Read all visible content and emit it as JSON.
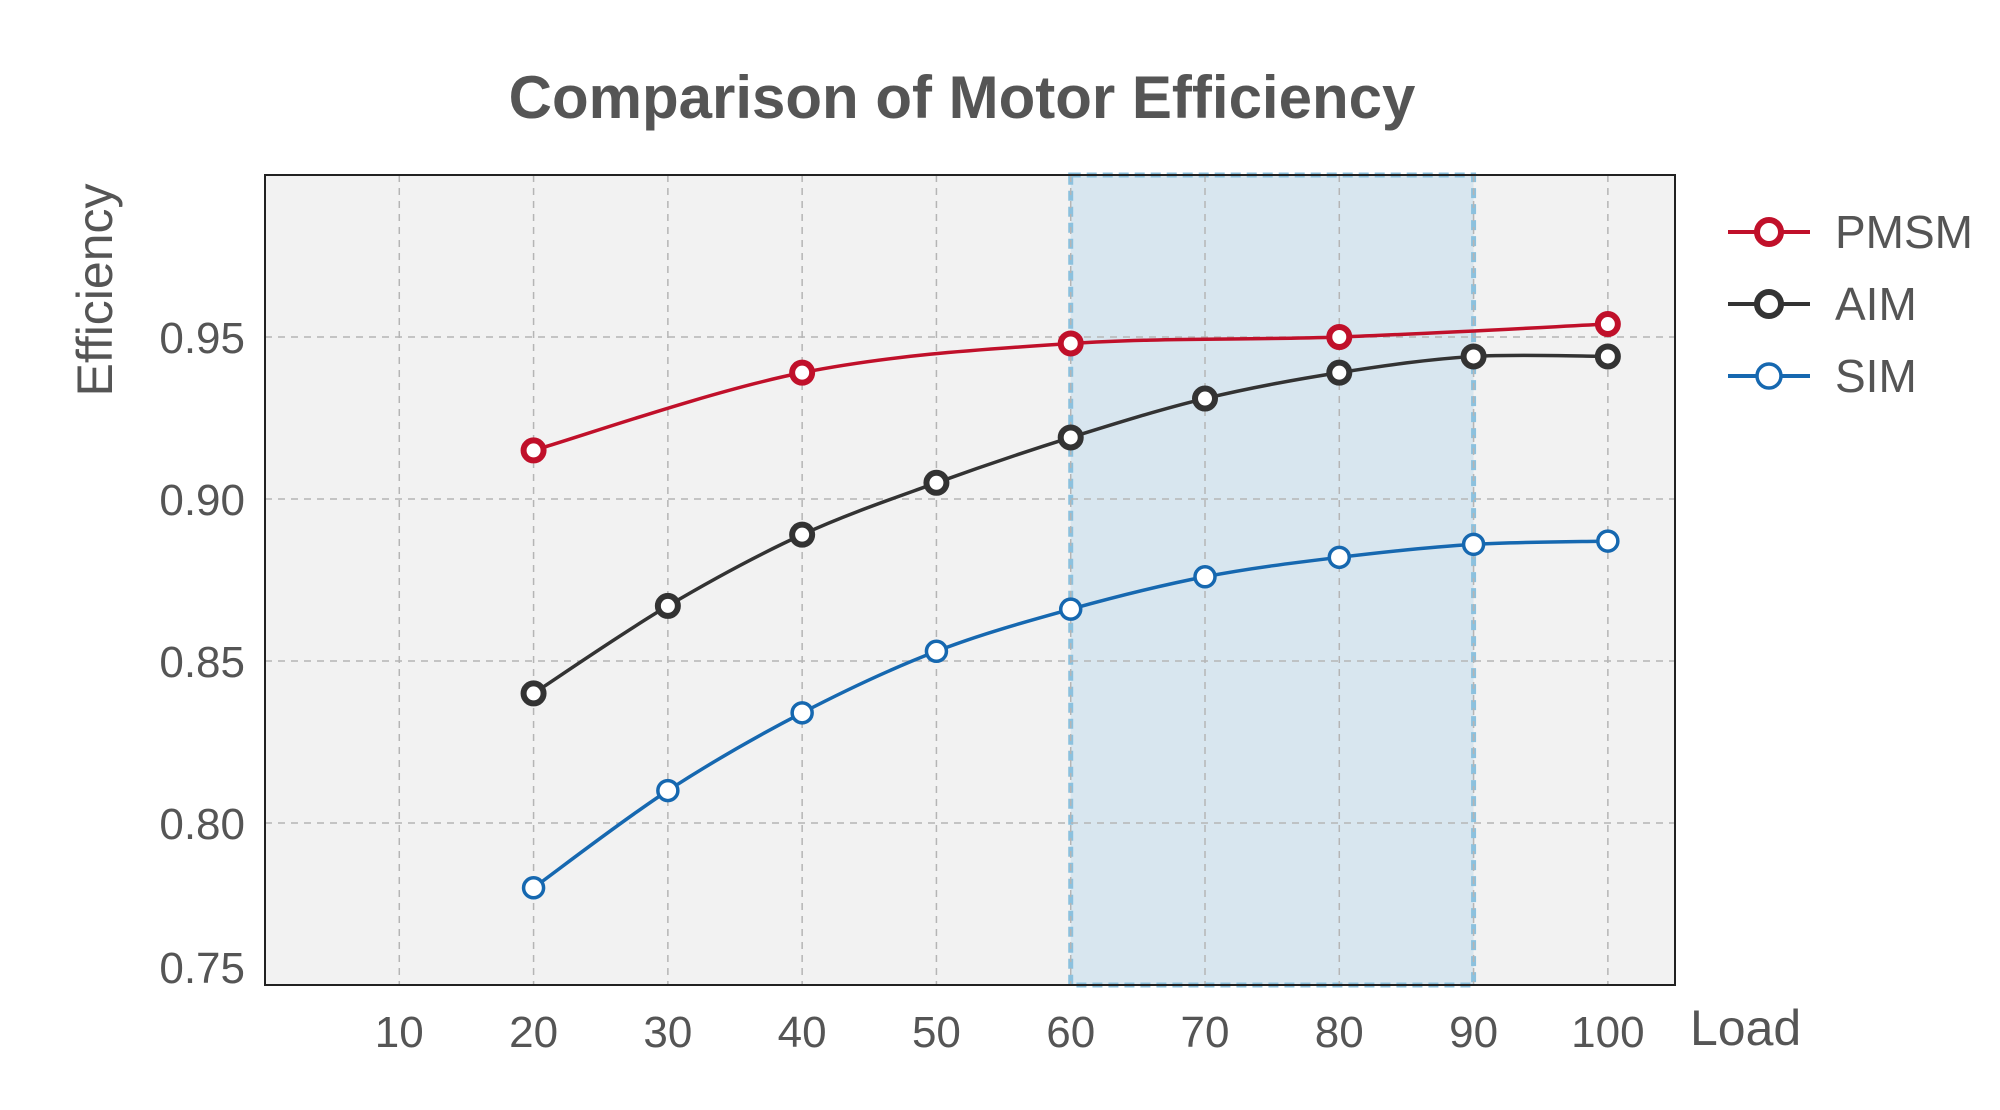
{
  "chart_data": {
    "type": "line",
    "title": "Comparison of Motor Efficiency",
    "xlabel": "Load",
    "ylabel": "Efficiency",
    "xlim": [
      0,
      105
    ],
    "ylim": [
      0.75,
      1.0
    ],
    "x_ticks": [
      "10",
      "20",
      "30",
      "40",
      "50",
      "60",
      "70",
      "80",
      "90",
      "100"
    ],
    "y_ticks": [
      "0.75",
      "0.80",
      "0.85",
      "0.90",
      "0.95"
    ],
    "grid": true,
    "legend": "right, outside plot, top",
    "highlight_region": {
      "x_start": 60,
      "x_end": 90,
      "color": "#d8e6ef",
      "border_color": "#8cc1de"
    },
    "series": [
      {
        "name": "PMSM",
        "color": "#c0102a",
        "marker": "open-circle-bold",
        "points": [
          [
            20,
            0.915
          ],
          [
            40,
            0.939
          ],
          [
            60,
            0.948
          ],
          [
            80,
            0.95
          ],
          [
            100,
            0.954
          ]
        ]
      },
      {
        "name": "AIM",
        "color": "#333333",
        "marker": "open-circle-bold",
        "points": [
          [
            20,
            0.84
          ],
          [
            30,
            0.867
          ],
          [
            40,
            0.889
          ],
          [
            50,
            0.905
          ],
          [
            60,
            0.919
          ],
          [
            70,
            0.931
          ],
          [
            80,
            0.939
          ],
          [
            90,
            0.944
          ],
          [
            100,
            0.944
          ]
        ]
      },
      {
        "name": "SIM",
        "color": "#1668b0",
        "marker": "open-circle",
        "points": [
          [
            20,
            0.78
          ],
          [
            30,
            0.81
          ],
          [
            40,
            0.834
          ],
          [
            50,
            0.853
          ],
          [
            60,
            0.866
          ],
          [
            70,
            0.876
          ],
          [
            80,
            0.882
          ],
          [
            90,
            0.886
          ],
          [
            100,
            0.887
          ]
        ]
      }
    ]
  }
}
